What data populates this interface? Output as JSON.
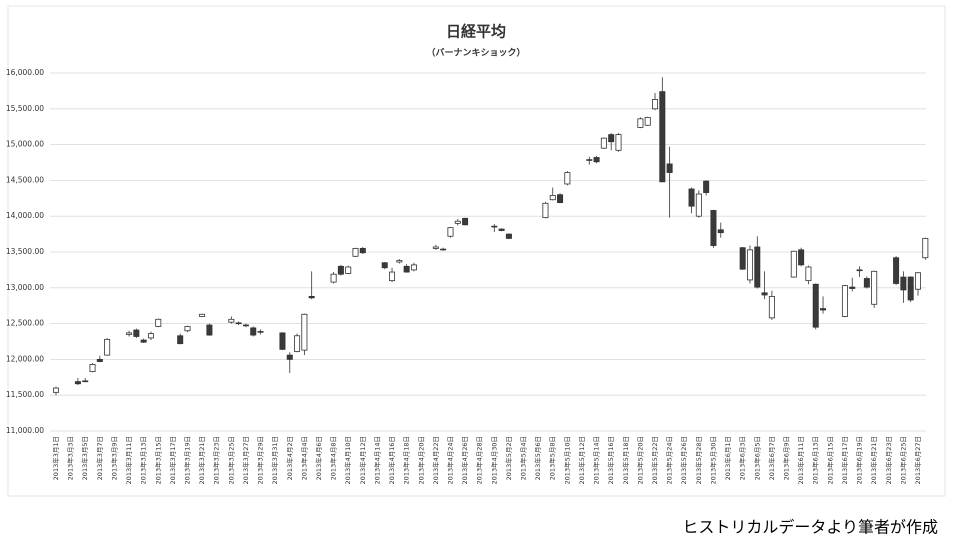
{
  "chart_data": {
    "type": "candlestick",
    "title": "日経平均",
    "subtitle": "（バーナンキショック）",
    "categories": [
      "2013年3月1日",
      null,
      "2013年3月3日",
      null,
      "2013年3月5日",
      null,
      "2013年3月7日",
      null,
      "2013年3月9日",
      null,
      "2013年3月11日",
      null,
      "2013年3月13日",
      null,
      "2013年3月15日",
      null,
      "2013年3月17日",
      null,
      "2013年3月19日",
      null,
      "2013年3月21日",
      null,
      "2013年3月23日",
      null,
      "2013年3月25日",
      null,
      "2013年3月27日",
      null,
      "2013年3月29日",
      null,
      "2013年3月31日",
      null,
      "2013年4月2日",
      null,
      "2013年4月4日",
      null,
      "2013年4月6日",
      null,
      "2013年4月8日",
      null,
      "2013年4月10日",
      null,
      "2013年4月12日",
      null,
      "2013年4月14日",
      null,
      "2013年4月16日",
      null,
      "2013年4月18日",
      null,
      "2013年4月20日",
      null,
      "2013年4月22日",
      null,
      "2013年4月24日",
      null,
      "2013年4月26日",
      null,
      "2013年4月28日",
      null,
      "2013年4月30日",
      null,
      "2013年5月2日",
      null,
      "2013年5月4日",
      null,
      "2013年5月6日",
      null,
      "2013年5月8日",
      null,
      "2013年5月10日",
      null,
      "2013年5月12日",
      null,
      "2013年5月14日",
      null,
      "2013年5月16日",
      null,
      "2013年5月18日",
      null,
      "2013年5月20日",
      null,
      "2013年5月22日",
      null,
      "2013年5月24日",
      null,
      "2013年5月26日",
      null,
      "2013年5月28日",
      null,
      "2013年5月30日",
      null,
      "2013年6月1日",
      null,
      "2013年6月3日",
      null,
      "2013年6月5日",
      null,
      "2013年6月7日",
      null,
      "2013年6月9日",
      null,
      "2013年6月11日",
      null,
      "2013年6月13日",
      null,
      "2013年6月15日",
      null,
      "2013年6月17日",
      null,
      "2013年6月19日",
      null,
      "2013年6月21日",
      null,
      "2013年6月23日",
      null,
      "2013年6月25日",
      null,
      "2013年6月27日",
      null
    ],
    "open": [
      11540,
      null,
      null,
      11690,
      11700,
      11830,
      12000,
      12060,
      null,
      null,
      12350,
      12410,
      12270,
      12300,
      12460,
      null,
      null,
      12330,
      12400,
      null,
      12600,
      12480,
      null,
      null,
      12520,
      12510,
      12480,
      12440,
      12380,
      null,
      null,
      12370,
      12060,
      12110,
      12130,
      12880,
      null,
      null,
      13080,
      13300,
      13200,
      13440,
      13550,
      null,
      null,
      13350,
      13100,
      13360,
      13300,
      13250,
      null,
      null,
      13550,
      13540,
      13720,
      13900,
      13970,
      null,
      null,
      null,
      13850,
      13820,
      13750,
      null,
      null,
      null,
      null,
      13980,
      14230,
      14300,
      14450,
      null,
      null,
      14790,
      14820,
      14950,
      15140,
      14920,
      null,
      null,
      15240,
      15270,
      15500,
      15740,
      14730,
      null,
      null,
      14380,
      14000,
      14490,
      14080,
      13810,
      null,
      null,
      13560,
      13110,
      13570,
      12930,
      12580,
      null,
      null,
      13150,
      13530,
      13100,
      13050,
      12710,
      null,
      null,
      12600,
      13010,
      13240,
      13130,
      12770,
      null,
      null,
      13420,
      13150,
      13150,
      12980,
      13420
    ],
    "high": [
      11620,
      null,
      null,
      11740,
      11740,
      11950,
      12050,
      12300,
      null,
      null,
      12400,
      12430,
      12290,
      12390,
      12570,
      null,
      null,
      12360,
      12470,
      null,
      12640,
      12500,
      null,
      null,
      12600,
      12530,
      12500,
      12460,
      12420,
      null,
      null,
      12380,
      12100,
      12360,
      12640,
      13230,
      null,
      null,
      13220,
      13320,
      13310,
      13560,
      13570,
      null,
      null,
      13360,
      13280,
      13400,
      13330,
      13350,
      null,
      null,
      13600,
      13560,
      13850,
      13960,
      13980,
      null,
      null,
      null,
      13890,
      13830,
      13760,
      null,
      null,
      null,
      null,
      14200,
      14400,
      14320,
      14630,
      null,
      null,
      14830,
      14840,
      15100,
      15160,
      15160,
      null,
      null,
      15380,
      15390,
      15720,
      15940,
      14970,
      null,
      null,
      14400,
      14360,
      14500,
      14090,
      13910,
      null,
      null,
      13570,
      13590,
      13720,
      13230,
      12960,
      null,
      null,
      13520,
      13560,
      13310,
      13060,
      12880,
      null,
      null,
      13040,
      13140,
      13300,
      13160,
      13240,
      null,
      null,
      13440,
      13230,
      13160,
      13220,
      13700
    ],
    "low": [
      11500,
      null,
      null,
      11640,
      11680,
      11820,
      11960,
      12050,
      null,
      null,
      12320,
      12300,
      12230,
      12270,
      12450,
      null,
      null,
      12210,
      12380,
      null,
      12590,
      12330,
      null,
      null,
      12500,
      12480,
      12450,
      12320,
      12350,
      null,
      null,
      12130,
      11810,
      12100,
      12060,
      12840,
      null,
      null,
      13060,
      13170,
      13190,
      13430,
      13470,
      null,
      null,
      13260,
      13080,
      13340,
      13210,
      13230,
      null,
      null,
      13530,
      13520,
      13700,
      13870,
      13870,
      null,
      null,
      null,
      13780,
      13790,
      13680,
      null,
      null,
      null,
      null,
      13970,
      14220,
      14180,
      14430,
      null,
      null,
      14720,
      14740,
      14940,
      14920,
      14900,
      null,
      null,
      15230,
      15260,
      15480,
      14480,
      13980,
      null,
      null,
      14040,
      13980,
      14290,
      13560,
      13700,
      null,
      null,
      13250,
      13060,
      12990,
      12840,
      12550,
      null,
      null,
      13140,
      13300,
      13050,
      12420,
      12640,
      null,
      null,
      12590,
      12950,
      13150,
      12990,
      12720,
      null,
      null,
      13040,
      12790,
      12800,
      12890,
      13390
    ],
    "close": [
      11600,
      null,
      null,
      11660,
      11690,
      11930,
      11970,
      12280,
      null,
      null,
      12370,
      12320,
      12240,
      12360,
      12560,
      null,
      null,
      12220,
      12460,
      null,
      12630,
      12340,
      null,
      null,
      12560,
      12500,
      12470,
      12340,
      12390,
      null,
      null,
      12140,
      12000,
      12330,
      12630,
      12860,
      null,
      null,
      13190,
      13190,
      13290,
      13550,
      13490,
      null,
      null,
      13280,
      13220,
      13380,
      13220,
      13320,
      null,
      null,
      13570,
      13530,
      13840,
      13930,
      13880,
      null,
      null,
      null,
      13860,
      13800,
      13690,
      null,
      null,
      null,
      null,
      14180,
      14290,
      14190,
      14610,
      null,
      null,
      14780,
      14760,
      15090,
      15040,
      15140,
      null,
      null,
      15360,
      15380,
      15630,
      14480,
      14610,
      null,
      null,
      14140,
      14310,
      14330,
      13590,
      13770,
      null,
      null,
      13260,
      13530,
      13010,
      12900,
      12880,
      null,
      null,
      13510,
      13320,
      13290,
      12450,
      12690,
      null,
      null,
      13030,
      12990,
      13250,
      13010,
      13230,
      null,
      null,
      13060,
      12970,
      12830,
      13210,
      13690
    ],
    "up_color": "#ffffff",
    "down_color": "#3a3a3a",
    "stroke_color": "#333333",
    "ylim": [
      11000,
      16000
    ],
    "yticks": [
      {
        "value": 11000,
        "label": "11,000.00"
      },
      {
        "value": 11500,
        "label": "11,500.00"
      },
      {
        "value": 12000,
        "label": "12,000.00"
      },
      {
        "value": 12500,
        "label": "12,500.00"
      },
      {
        "value": 13000,
        "label": "13,000.00"
      },
      {
        "value": 13500,
        "label": "13,500.00"
      },
      {
        "value": 14000,
        "label": "14,000.00"
      },
      {
        "value": 14500,
        "label": "14,500.00"
      },
      {
        "value": 15000,
        "label": "15,000.00"
      },
      {
        "value": 15500,
        "label": "15,500.00"
      },
      {
        "value": 16000,
        "label": "16,000.00"
      }
    ],
    "grid": true
  },
  "caption": "ヒストリカルデータより筆者が作成"
}
